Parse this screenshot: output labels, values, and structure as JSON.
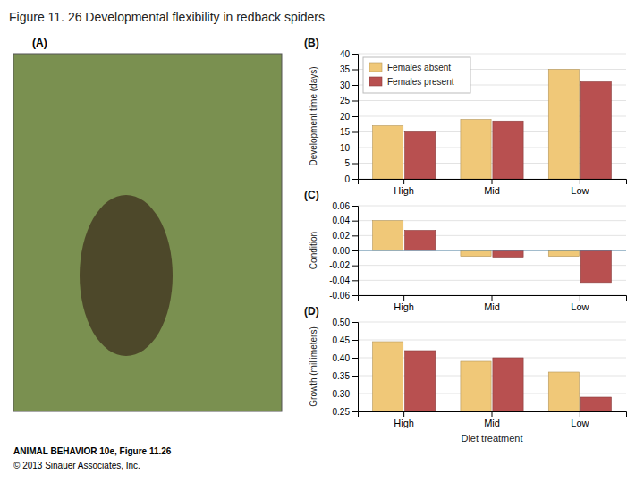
{
  "title": "Figure 11. 26  Developmental flexibility in redback spiders",
  "annotations": [
    "(A)",
    "ANIMAL BEHAVIOR 10e, Figure 11.26",
    "© 2013 Sinauer Associates, Inc."
  ],
  "chart_data": [
    {
      "type": "bar",
      "title": "(B)",
      "ylabel": "Development time (days)",
      "categories": [
        "High",
        "Mid",
        "Low"
      ],
      "series": [
        {
          "name": "Females absent",
          "color": "#f0c878",
          "values": [
            17,
            19,
            35
          ]
        },
        {
          "name": "Females present",
          "color": "#b85050",
          "values": [
            15,
            18.5,
            31
          ]
        }
      ],
      "ylim": [
        0,
        40
      ],
      "yticks": [
        0,
        5,
        10,
        15,
        20,
        25,
        30,
        35,
        40
      ],
      "grid": true,
      "legend": "upper left"
    },
    {
      "type": "bar",
      "title": "(C)",
      "ylabel": "Condition",
      "categories": [
        "High",
        "Mid",
        "Low"
      ],
      "series": [
        {
          "color": "#f0c878",
          "values": [
            0.04,
            -0.008,
            -0.008
          ]
        },
        {
          "color": "#b85050",
          "values": [
            0.027,
            -0.009,
            -0.043
          ]
        }
      ],
      "ylim": [
        -0.06,
        0.06
      ],
      "yticks": [
        -0.06,
        -0.04,
        -0.02,
        {
          "value": 0,
          "label": "0.00"
        },
        0.02,
        0.04,
        0.06
      ],
      "grid": true
    },
    {
      "type": "bar",
      "title": "(D)",
      "ylabel": "Growth (millimeters)",
      "xlabel": "Diet treatment",
      "categories": [
        "High",
        "Mid",
        "Low"
      ],
      "series": [
        {
          "color": "#f0c878",
          "values": [
            0.445,
            0.39,
            0.36
          ]
        },
        {
          "color": "#b85050",
          "values": [
            0.42,
            0.4,
            0.29
          ]
        }
      ],
      "ylim": [
        0.25,
        0.5
      ],
      "yticks": [
        0.25,
        {
          "value": 0.3,
          "label": "0.30"
        },
        0.35,
        {
          "value": 0.4,
          "label": "0.40"
        },
        0.45,
        {
          "value": 0.5,
          "label": "0.50"
        }
      ],
      "grid": true
    }
  ]
}
